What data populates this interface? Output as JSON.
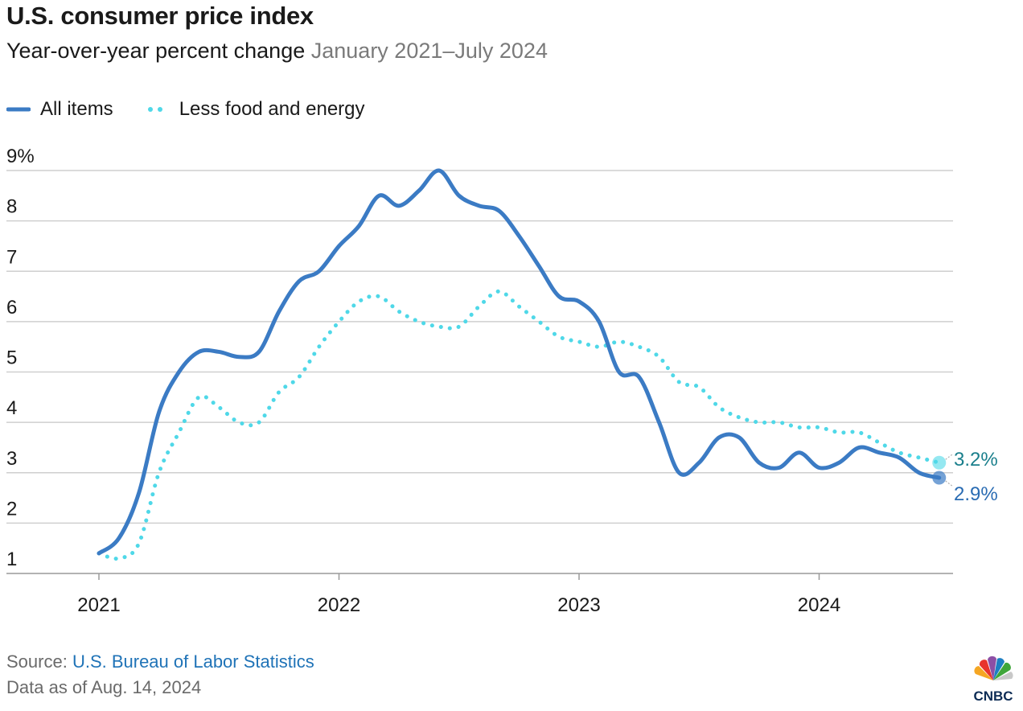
{
  "title": "U.S. consumer price index",
  "subtitle": "Year-over-year percent change",
  "date_range": "January 2021–July 2024",
  "legend": {
    "all_items": "All items",
    "core": "Less food and energy"
  },
  "end_labels": {
    "all_items": "2.9%",
    "core": "3.2%"
  },
  "source_prefix": "Source: ",
  "source_name": "U.S. Bureau of Labor Statistics",
  "data_as_of": "Data as of Aug. 14, 2024",
  "logo_text": "CNBC",
  "colors": {
    "all_items": "#3b7bc4",
    "core": "#4fd8e8",
    "grid": "#cfcfcf",
    "core_label": "#1a7f8c",
    "all_label": "#2a6cb3"
  },
  "chart_data": {
    "type": "line",
    "title": "U.S. consumer price index",
    "subtitle": "Year-over-year percent change",
    "x": [
      "2021-01",
      "2021-02",
      "2021-03",
      "2021-04",
      "2021-05",
      "2021-06",
      "2021-07",
      "2021-08",
      "2021-09",
      "2021-10",
      "2021-11",
      "2021-12",
      "2022-01",
      "2022-02",
      "2022-03",
      "2022-04",
      "2022-05",
      "2022-06",
      "2022-07",
      "2022-08",
      "2022-09",
      "2022-10",
      "2022-11",
      "2022-12",
      "2023-01",
      "2023-02",
      "2023-03",
      "2023-04",
      "2023-05",
      "2023-06",
      "2023-07",
      "2023-08",
      "2023-09",
      "2023-10",
      "2023-11",
      "2023-12",
      "2024-01",
      "2024-02",
      "2024-03",
      "2024-04",
      "2024-05",
      "2024-06",
      "2024-07"
    ],
    "x_tick_labels": [
      "2021",
      "2022",
      "2023",
      "2024"
    ],
    "y_tick_labels": [
      "9%",
      "8",
      "7",
      "6",
      "5",
      "4",
      "3",
      "2",
      "1"
    ],
    "ylim": [
      1,
      9
    ],
    "grid": true,
    "legend_position": "top-left",
    "series": [
      {
        "name": "All items",
        "style": "solid",
        "values": [
          1.4,
          1.7,
          2.6,
          4.2,
          5.0,
          5.4,
          5.4,
          5.3,
          5.4,
          6.2,
          6.8,
          7.0,
          7.5,
          7.9,
          8.5,
          8.3,
          8.6,
          9.0,
          8.5,
          8.3,
          8.2,
          7.7,
          7.1,
          6.5,
          6.4,
          6.0,
          5.0,
          4.9,
          4.0,
          3.0,
          3.2,
          3.7,
          3.7,
          3.2,
          3.1,
          3.4,
          3.1,
          3.2,
          3.5,
          3.4,
          3.3,
          3.0,
          2.9
        ]
      },
      {
        "name": "Less food and energy",
        "style": "dotted",
        "values": [
          1.4,
          1.3,
          1.6,
          3.0,
          3.8,
          4.5,
          4.3,
          4.0,
          4.0,
          4.6,
          4.9,
          5.5,
          6.0,
          6.4,
          6.5,
          6.2,
          6.0,
          5.9,
          5.9,
          6.3,
          6.6,
          6.3,
          6.0,
          5.7,
          5.6,
          5.5,
          5.6,
          5.5,
          5.3,
          4.8,
          4.7,
          4.3,
          4.1,
          4.0,
          4.0,
          3.9,
          3.9,
          3.8,
          3.8,
          3.6,
          3.4,
          3.3,
          3.2
        ]
      }
    ]
  }
}
